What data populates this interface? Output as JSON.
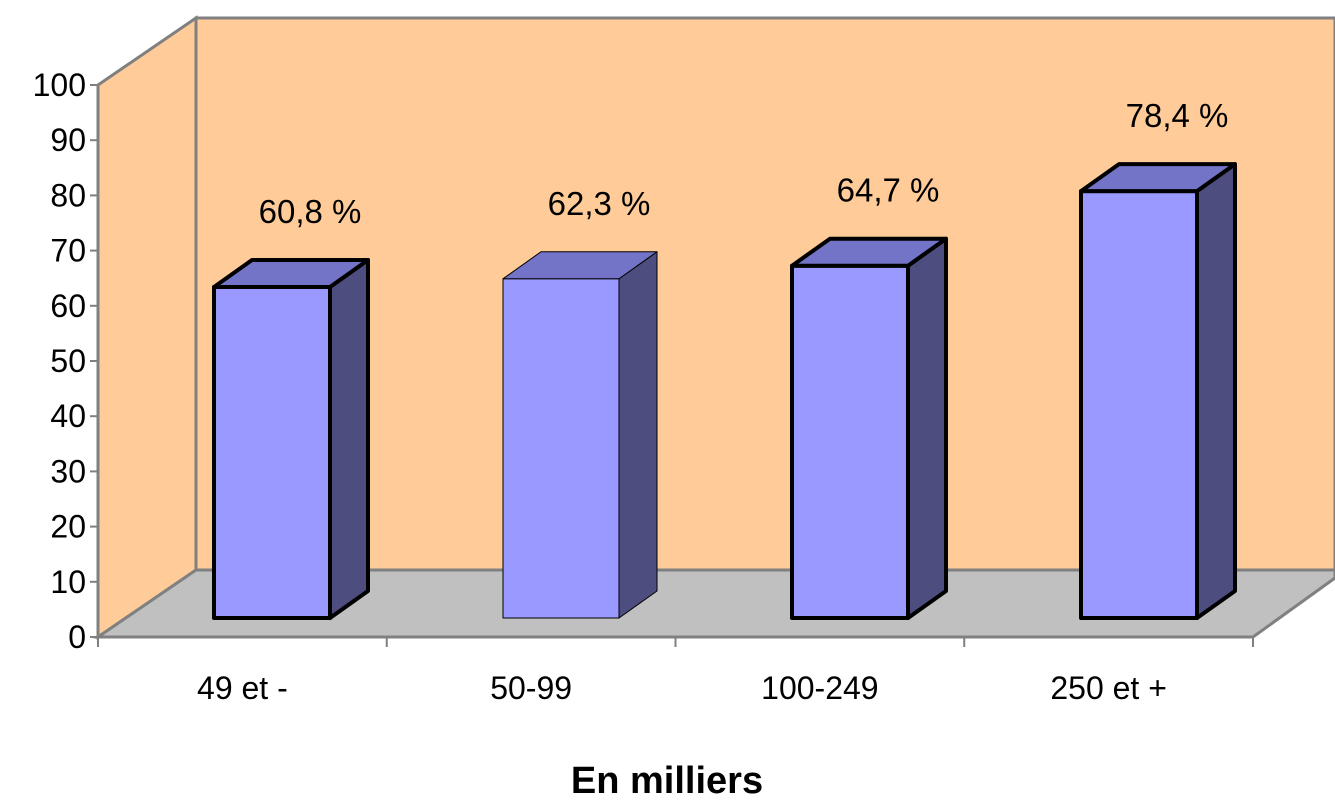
{
  "chart_data": {
    "type": "bar",
    "categories": [
      "49 et -",
      "50-99",
      "100-249",
      "250 et +"
    ],
    "values": [
      60.8,
      62.3,
      64.7,
      78.4
    ],
    "data_labels": [
      "60,8 %",
      "62,3 %",
      "64,7 %",
      "78,4 %"
    ],
    "title": "",
    "xlabel": "En milliers",
    "ylabel": "",
    "ylim": [
      0,
      100
    ],
    "yticks": [
      "0",
      "10",
      "20",
      "30",
      "40",
      "50",
      "60",
      "70",
      "80",
      "90",
      "100"
    ],
    "grid": false,
    "legend": "none",
    "style": "3d",
    "colors": {
      "back_wall": "#FFCC99",
      "floor": "#C0C0C0",
      "bar_front": "#9999FF",
      "bar_top": "#7373C7",
      "bar_side": "#4D4D80"
    }
  }
}
